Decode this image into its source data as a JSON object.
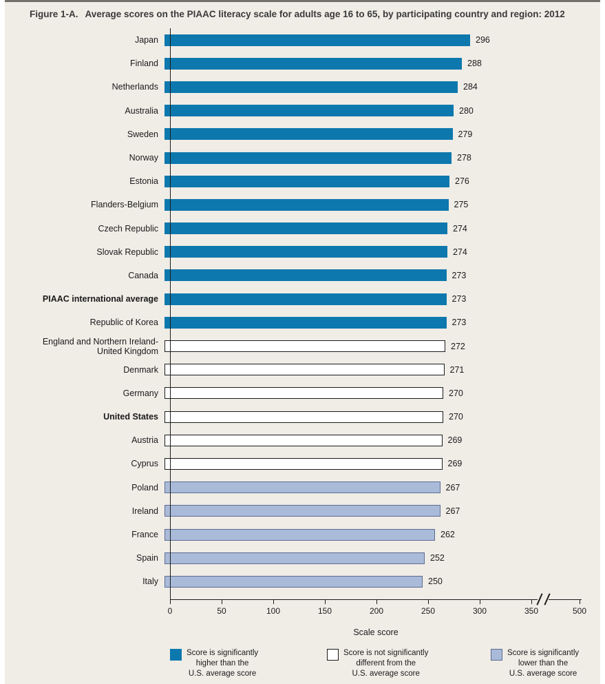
{
  "figure": {
    "label": "Figure 1-A.",
    "title": "Average scores on the PIAAC literacy scale for adults age 16 to 65, by participating country and region: 2012"
  },
  "chart_data": {
    "type": "bar",
    "orientation": "horizontal",
    "title": "Average scores on the PIAAC literacy scale for adults age 16 to 65, by participating country and region: 2012",
    "xlabel": "Scale score",
    "xlim": [
      0,
      500
    ],
    "x_ticks": [
      0,
      50,
      100,
      150,
      200,
      250,
      300,
      350,
      500
    ],
    "axis_break_between": [
      350,
      500
    ],
    "grid": false,
    "legend_position": "bottom",
    "categories": [
      "Japan",
      "Finland",
      "Netherlands",
      "Australia",
      "Sweden",
      "Norway",
      "Estonia",
      "Flanders-Belgium",
      "Czech Republic",
      "Slovak Republic",
      "Canada",
      "PIAAC international average",
      "Republic of Korea",
      "England and Northern Ireland-\nUnited Kingdom",
      "Denmark",
      "Germany",
      "United States",
      "Austria",
      "Cyprus",
      "Poland",
      "Ireland",
      "France",
      "Spain",
      "Italy"
    ],
    "values": [
      296,
      288,
      284,
      280,
      279,
      278,
      276,
      275,
      274,
      274,
      273,
      273,
      273,
      272,
      271,
      270,
      270,
      269,
      269,
      267,
      267,
      262,
      252,
      250
    ],
    "significance": [
      "higher",
      "higher",
      "higher",
      "higher",
      "higher",
      "higher",
      "higher",
      "higher",
      "higher",
      "higher",
      "higher",
      "higher",
      "higher",
      "not_different",
      "not_different",
      "not_different",
      "not_different",
      "not_different",
      "not_different",
      "lower",
      "lower",
      "lower",
      "lower",
      "lower"
    ],
    "bold_categories": [
      "PIAAC international average",
      "United States"
    ],
    "colors": {
      "higher": "#0d78ad",
      "not_different": "#ffffff",
      "lower": "#aabbd9",
      "axis": "#1a1a1a",
      "background": "#f0ede7"
    },
    "border_colors": {
      "higher": "#0d78ad",
      "not_different": "#1a1a1a",
      "lower": "#5b6b92"
    }
  },
  "legend": {
    "items": [
      {
        "significance": "higher",
        "label": "Score is significantly\nhigher than the\nU.S. average score"
      },
      {
        "significance": "not_different",
        "label": "Score is not significantly\ndifferent from the\nU.S. average score"
      },
      {
        "significance": "lower",
        "label": "Score is significantly\nlower than the\nU.S. average score"
      }
    ]
  }
}
